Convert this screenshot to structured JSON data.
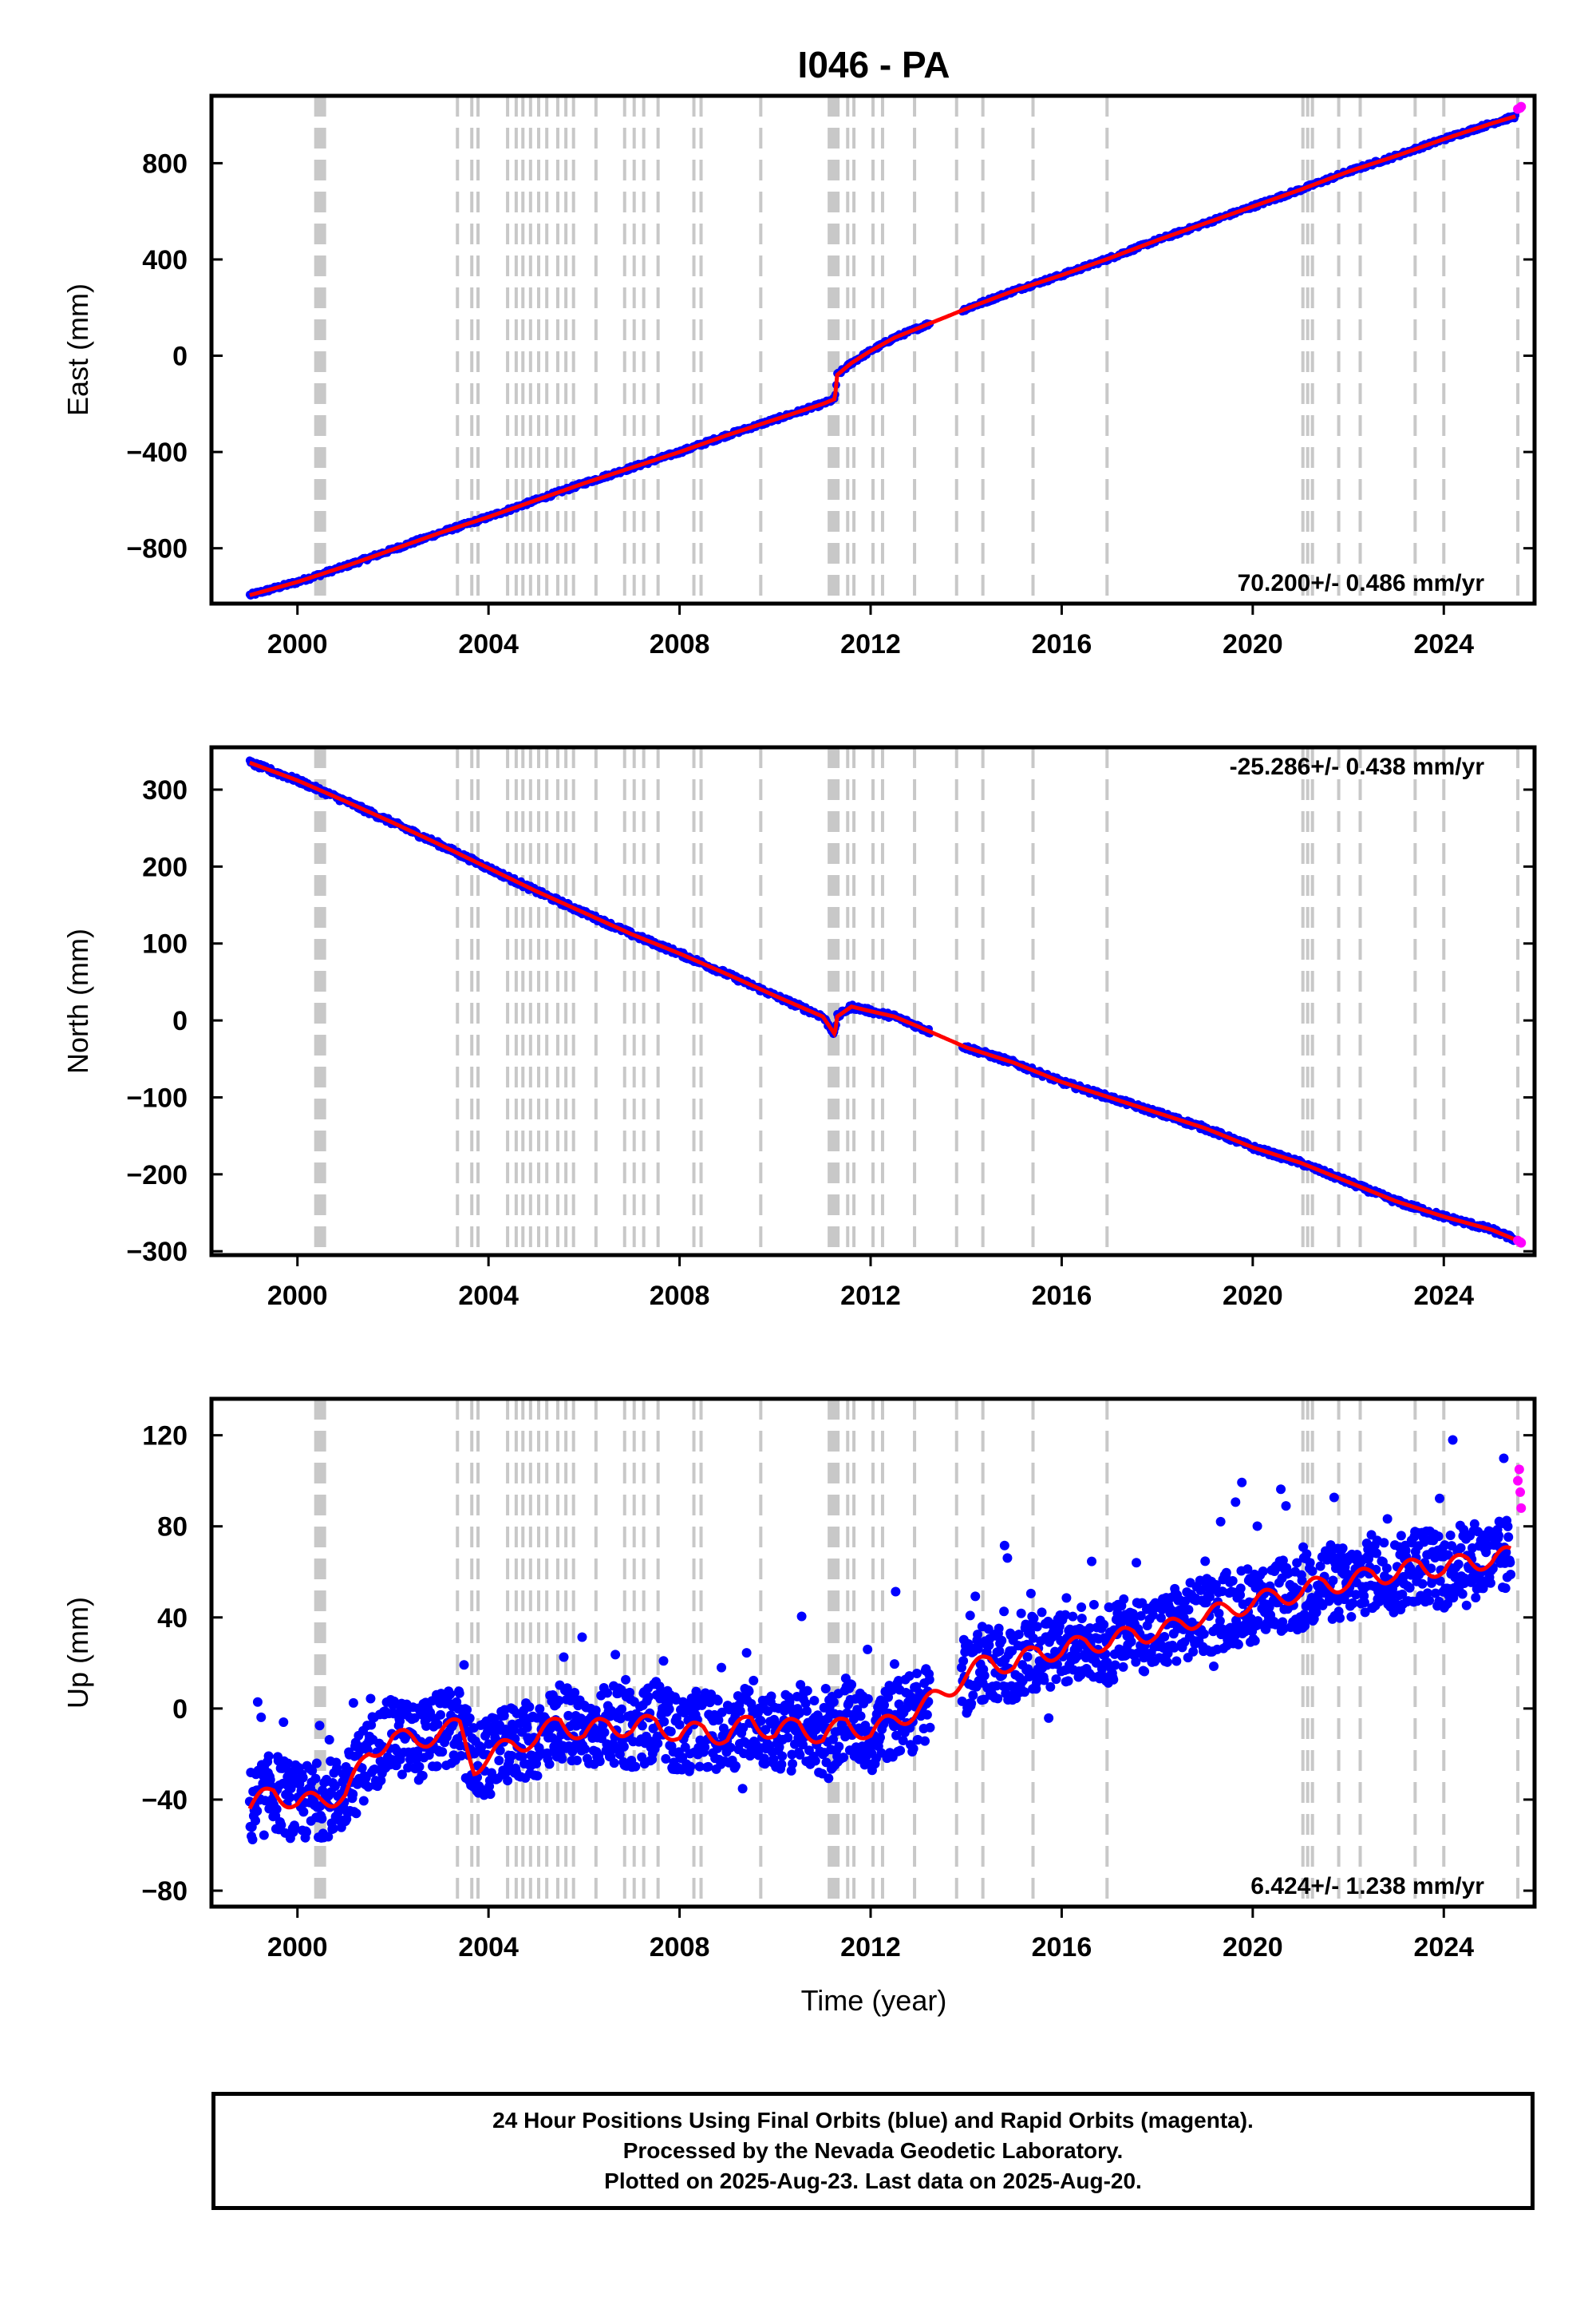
{
  "title": "I046 - PA",
  "footer": {
    "line1": "24 Hour Positions Using Final Orbits (blue) and Rapid Orbits (magenta).",
    "line2": "Processed by the Nevada Geodetic Laboratory.",
    "line3": "Plotted on 2025-Aug-23. Last data on 2025-Aug-20."
  },
  "colors": {
    "final_orbits": "#0000ff",
    "rapid_orbits": "#ff00ff",
    "model_fit": "#ff0000",
    "event_lines": "#c8c8c8"
  },
  "event_lines_years": [
    2000.4,
    2000.48,
    2000.55,
    2003.35,
    2003.65,
    2003.78,
    2004.4,
    2004.58,
    2004.72,
    2004.88,
    2005.05,
    2005.22,
    2005.45,
    2005.62,
    2005.78,
    2006.25,
    2006.85,
    2007.05,
    2007.25,
    2007.55,
    2008.3,
    2008.45,
    2009.7,
    2011.15,
    2011.22,
    2011.3,
    2011.52,
    2011.65,
    2012.05,
    2012.25,
    2012.92,
    2013.8,
    2014.35,
    2015.4,
    2016.95,
    2021.05,
    2021.15,
    2021.25,
    2021.8,
    2022.25,
    2023.4,
    2024.0,
    2025.55
  ],
  "chart_data": [
    {
      "type": "scatter",
      "ylabel": "East (mm)",
      "xlabel": "",
      "xlim": [
        1998.2,
        2025.9
      ],
      "ylim": [
        -1030,
        1080
      ],
      "yticks": [
        -800,
        -400,
        0,
        400,
        800
      ],
      "xticks": [
        2000,
        2004,
        2008,
        2012,
        2016,
        2020,
        2024
      ],
      "rate_label": "70.200+/- 0.486 mm/yr",
      "rate_label_position": "bottom-right",
      "series": [
        {
          "name": "Final Orbits",
          "x": [
            1999.0,
            2000.0,
            2001.0,
            2002.0,
            2003.0,
            2004.0,
            2005.0,
            2006.0,
            2007.0,
            2008.0,
            2009.0,
            2010.0,
            2011.0,
            2011.25,
            2011.3,
            2011.6,
            2012.0,
            2012.5,
            2013.0,
            2014.0,
            2015.0,
            2016.0,
            2017.0,
            2018.0,
            2019.0,
            2020.0,
            2021.0,
            2022.0,
            2023.0,
            2024.0,
            2025.0,
            2025.5
          ],
          "values": [
            -995,
            -940,
            -875,
            -805,
            -735,
            -670,
            -600,
            -530,
            -465,
            -400,
            -330,
            -265,
            -200,
            -180,
            -80,
            -30,
            20,
            75,
            115,
            195,
            270,
            335,
            405,
            480,
            550,
            620,
            690,
            765,
            830,
            900,
            965,
            995
          ]
        },
        {
          "name": "Rapid Orbits",
          "x": [
            2025.55,
            2025.6,
            2025.62
          ],
          "values": [
            1025,
            1030,
            1035
          ]
        }
      ]
    },
    {
      "type": "scatter",
      "ylabel": "North (mm)",
      "xlabel": "",
      "xlim": [
        1998.2,
        2025.9
      ],
      "ylim": [
        -305,
        355
      ],
      "yticks": [
        -300,
        -200,
        -100,
        0,
        100,
        200,
        300
      ],
      "xticks": [
        2000,
        2004,
        2008,
        2012,
        2016,
        2020,
        2024
      ],
      "rate_label": "-25.286+/- 0.438 mm/yr",
      "rate_label_position": "top-right",
      "series": [
        {
          "name": "Final Orbits",
          "x": [
            1999.0,
            2000.0,
            2001.0,
            2002.0,
            2003.0,
            2004.0,
            2005.0,
            2006.0,
            2007.0,
            2008.0,
            2009.0,
            2010.0,
            2011.0,
            2011.25,
            2011.3,
            2011.6,
            2012.0,
            2012.5,
            2013.0,
            2014.0,
            2015.0,
            2016.0,
            2017.0,
            2018.0,
            2019.0,
            2020.0,
            2021.0,
            2022.0,
            2023.0,
            2024.0,
            2025.0,
            2025.5
          ],
          "values": [
            335,
            312,
            285,
            257,
            228,
            198,
            168,
            140,
            112,
            87,
            60,
            32,
            5,
            -18,
            5,
            18,
            12,
            5,
            -8,
            -35,
            -55,
            -80,
            -100,
            -120,
            -140,
            -165,
            -185,
            -210,
            -235,
            -255,
            -272,
            -285
          ]
        },
        {
          "name": "Rapid Orbits",
          "x": [
            2025.55,
            2025.6,
            2025.62
          ],
          "values": [
            -286,
            -288,
            -289
          ]
        }
      ]
    },
    {
      "type": "scatter",
      "ylabel": "Up (mm)",
      "xlabel": "Time (year)",
      "xlim": [
        1998.2,
        2025.9
      ],
      "ylim": [
        -87,
        136
      ],
      "yticks": [
        -80,
        -40,
        0,
        40,
        80,
        120
      ],
      "xticks": [
        2000,
        2004,
        2008,
        2012,
        2016,
        2020,
        2024
      ],
      "rate_label": "6.424+/- 1.238 mm/yr",
      "rate_label_position": "bottom-right",
      "series": [
        {
          "name": "Final Orbits",
          "x": [
            1999.0,
            1999.5,
            2000.0,
            2000.5,
            2001.0,
            2001.5,
            2002.0,
            2002.5,
            2003.0,
            2003.4,
            2003.7,
            2004.0,
            2004.5,
            2005.0,
            2005.5,
            2006.0,
            2006.5,
            2007.0,
            2007.5,
            2008.0,
            2008.5,
            2009.0,
            2009.5,
            2010.0,
            2010.5,
            2011.0,
            2011.5,
            2012.0,
            2012.5,
            2012.9,
            2014.0,
            2014.5,
            2015.0,
            2015.5,
            2016.0,
            2016.5,
            2017.0,
            2017.5,
            2018.0,
            2018.5,
            2019.0,
            2019.5,
            2020.0,
            2020.5,
            2021.0,
            2021.5,
            2022.0,
            2022.5,
            2023.0,
            2023.5,
            2024.0,
            2024.5,
            2025.0,
            2025.4
          ],
          "values": [
            -44,
            -36,
            -42,
            -40,
            -38,
            -20,
            -12,
            -15,
            -10,
            -8,
            -25,
            -22,
            -15,
            -14,
            -5,
            -12,
            -6,
            -10,
            -5,
            -13,
            -8,
            -14,
            -4,
            -12,
            -6,
            -14,
            -5,
            -12,
            -4,
            -2,
            14,
            22,
            18,
            26,
            24,
            30,
            28,
            34,
            32,
            38,
            40,
            44,
            46,
            50,
            50,
            56,
            54,
            60,
            58,
            64,
            60,
            66,
            64,
            68
          ]
        },
        {
          "name": "Rapid Orbits",
          "x": [
            2025.55,
            2025.58,
            2025.6,
            2025.62
          ],
          "values": [
            100,
            105,
            95,
            88
          ]
        }
      ]
    }
  ]
}
